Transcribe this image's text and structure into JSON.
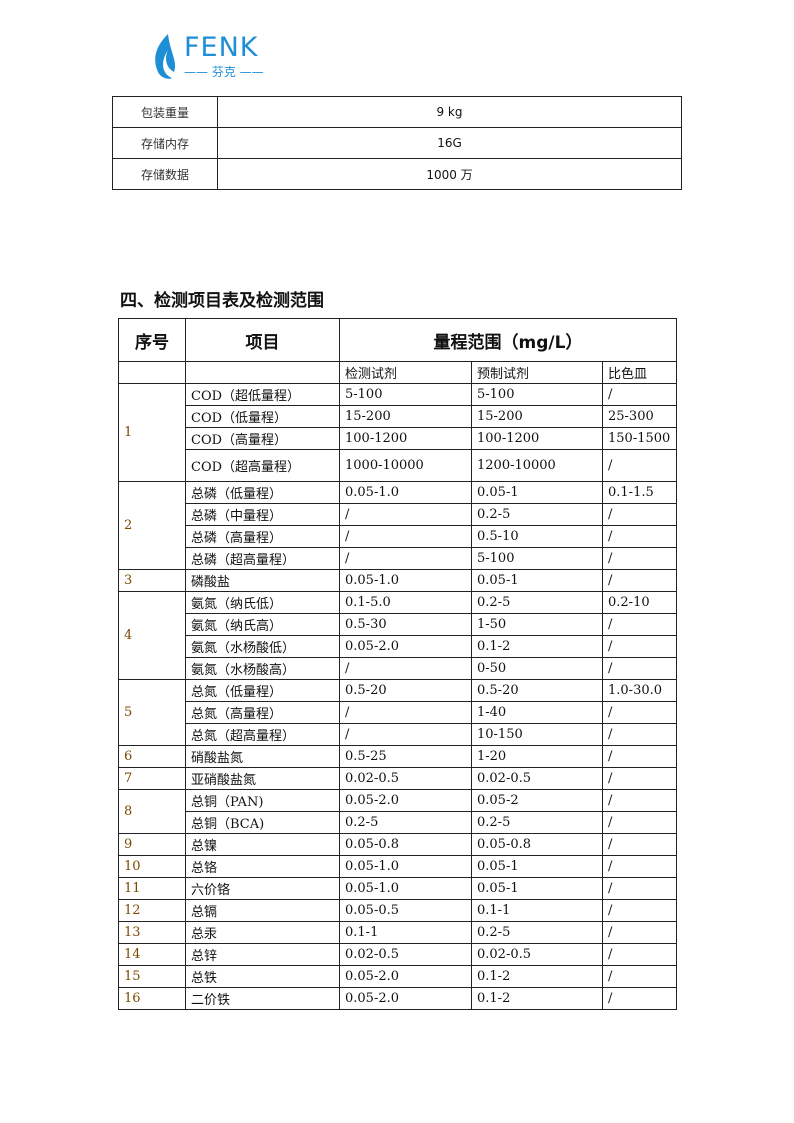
{
  "logo": {
    "text": "FENK",
    "subtitle": "芬克",
    "brand_color": "#1e8fd6"
  },
  "specs": [
    {
      "label": "包装重量",
      "value": "9 kg"
    },
    {
      "label": "存储内存",
      "value": "16G"
    },
    {
      "label": "存储数据",
      "value": "1000 万"
    }
  ],
  "section_title": "四、检测项目表及检测范围",
  "range_table": {
    "headers": {
      "no": "序号",
      "item": "项目",
      "range": "量程范围（mg/L）"
    },
    "subheaders": [
      "检测试剂",
      "预制试剂",
      "比色皿"
    ],
    "groups": [
      {
        "no": "1",
        "rows": [
          [
            "COD（超低量程）",
            "5-100",
            "5-100",
            "/"
          ],
          [
            "COD（低量程）",
            "15-200",
            "15-200",
            "25-300"
          ],
          [
            "COD（高量程）",
            "100-1200",
            "100-1200",
            "150-1500"
          ],
          [
            "COD（超高量程）",
            "1000-10000",
            "1200-10000",
            "/"
          ]
        ]
      },
      {
        "no": "2",
        "rows": [
          [
            "总磷（低量程）",
            "0.05-1.0",
            "0.05-1",
            "0.1-1.5"
          ],
          [
            "总磷（中量程）",
            "/",
            "0.2-5",
            "/"
          ],
          [
            "总磷（高量程）",
            "/",
            "0.5-10",
            "/"
          ],
          [
            "总磷（超高量程）",
            "/",
            "5-100",
            "/"
          ]
        ]
      },
      {
        "no": "3",
        "rows": [
          [
            "磷酸盐",
            "0.05-1.0",
            "0.05-1",
            "/"
          ]
        ]
      },
      {
        "no": "4",
        "rows": [
          [
            "氨氮（纳氏低）",
            "0.1-5.0",
            "0.2-5",
            "0.2-10"
          ],
          [
            "氨氮（纳氏高）",
            "0.5-30",
            "1-50",
            "/"
          ],
          [
            "氨氮（水杨酸低）",
            "0.05-2.0",
            "0.1-2",
            "/"
          ],
          [
            "氨氮（水杨酸高）",
            "/",
            "0-50",
            "/"
          ]
        ]
      },
      {
        "no": "5",
        "rows": [
          [
            "总氮（低量程）",
            "0.5-20",
            "0.5-20",
            "1.0-30.0"
          ],
          [
            "总氮（高量程）",
            "/",
            "1-40",
            "/"
          ],
          [
            "总氮（超高量程）",
            "/",
            "10-150",
            "/"
          ]
        ]
      },
      {
        "no": "6",
        "rows": [
          [
            "硝酸盐氮",
            "0.5-25",
            "1-20",
            "/"
          ]
        ]
      },
      {
        "no": "7",
        "rows": [
          [
            "亚硝酸盐氮",
            "0.02-0.5",
            "0.02-0.5",
            "/"
          ]
        ]
      },
      {
        "no": "8",
        "rows": [
          [
            "总铜（PAN)",
            "0.05-2.0",
            "0.05-2",
            "/"
          ],
          [
            "总铜（BCA)",
            "0.2-5",
            "0.2-5",
            "/"
          ]
        ]
      },
      {
        "no": "9",
        "rows": [
          [
            "总镍",
            "0.05-0.8",
            "0.05-0.8",
            "/"
          ]
        ]
      },
      {
        "no": "10",
        "rows": [
          [
            "总铬",
            "0.05-1.0",
            "0.05-1",
            "/"
          ]
        ]
      },
      {
        "no": "11",
        "rows": [
          [
            "六价铬",
            "0.05-1.0",
            "0.05-1",
            "/"
          ]
        ]
      },
      {
        "no": "12",
        "rows": [
          [
            "总镉",
            "0.05-0.5",
            "0.1-1",
            "/"
          ]
        ]
      },
      {
        "no": "13",
        "rows": [
          [
            "总汞",
            "0.1-1",
            "0.2-5",
            "/"
          ]
        ]
      },
      {
        "no": "14",
        "rows": [
          [
            "总锌",
            "0.02-0.5",
            "0.02-0.5",
            "/"
          ]
        ]
      },
      {
        "no": "15",
        "rows": [
          [
            "总铁",
            "0.05-2.0",
            "0.1-2",
            "/"
          ]
        ]
      },
      {
        "no": "16",
        "rows": [
          [
            "二价铁",
            "0.05-2.0",
            "0.1-2",
            "/"
          ]
        ]
      }
    ]
  }
}
